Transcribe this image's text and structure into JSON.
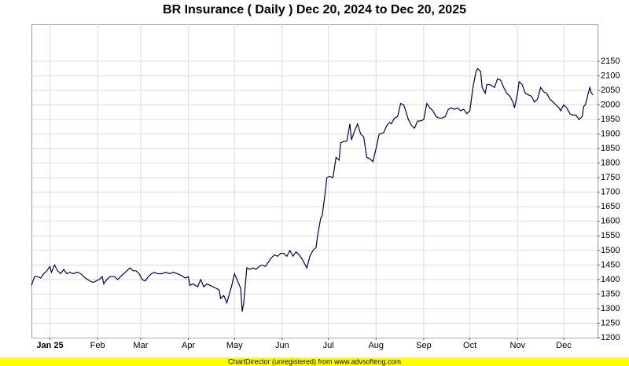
{
  "chart_data": {
    "type": "line",
    "title": "BR Insurance ( Daily ) Dec 20, 2024 to Dec 20, 2025",
    "footer": "ChartDirector (unregistered) from www.advsofteng.com",
    "x": [
      "2024-12-20",
      "2024-12-22",
      "2024-12-24",
      "2024-12-26",
      "2024-12-28",
      "2024-12-30",
      "2025-01-01",
      "2025-01-02",
      "2025-01-04",
      "2025-01-06",
      "2025-01-08",
      "2025-01-10",
      "2025-01-12",
      "2025-01-14",
      "2025-01-16",
      "2025-01-19",
      "2025-01-21",
      "2025-01-24",
      "2025-01-27",
      "2025-01-29",
      "2025-02-02",
      "2025-02-04",
      "2025-02-05",
      "2025-02-07",
      "2025-02-09",
      "2025-02-12",
      "2025-02-14",
      "2025-02-17",
      "2025-02-20",
      "2025-02-22",
      "2025-02-24",
      "2025-02-26",
      "2025-02-28",
      "2025-03-02",
      "2025-03-04",
      "2025-03-06",
      "2025-03-08",
      "2025-03-10",
      "2025-03-12",
      "2025-03-15",
      "2025-03-17",
      "2025-03-20",
      "2025-03-22",
      "2025-03-25",
      "2025-03-27",
      "2025-03-30",
      "2025-04-01",
      "2025-04-02",
      "2025-04-04",
      "2025-04-07",
      "2025-04-09",
      "2025-04-11",
      "2025-04-13",
      "2025-04-15",
      "2025-04-17",
      "2025-04-19",
      "2025-04-21",
      "2025-04-22",
      "2025-04-24",
      "2025-04-26",
      "2025-04-29",
      "2025-05-01",
      "2025-05-03",
      "2025-05-05",
      "2025-05-06",
      "2025-05-07",
      "2025-05-09",
      "2025-05-11",
      "2025-05-13",
      "2025-05-15",
      "2025-05-17",
      "2025-05-19",
      "2025-05-21",
      "2025-05-23",
      "2025-05-25",
      "2025-05-27",
      "2025-05-29",
      "2025-05-31",
      "2025-06-02",
      "2025-06-04",
      "2025-06-06",
      "2025-06-08",
      "2025-06-10",
      "2025-06-12",
      "2025-06-14",
      "2025-06-17",
      "2025-06-19",
      "2025-06-21",
      "2025-06-23",
      "2025-06-24",
      "2025-06-26",
      "2025-06-27",
      "2025-06-29",
      "2025-06-30",
      "2025-07-02",
      "2025-07-04",
      "2025-07-06",
      "2025-07-08",
      "2025-07-09",
      "2025-07-11",
      "2025-07-13",
      "2025-07-15",
      "2025-07-16",
      "2025-07-18",
      "2025-07-20",
      "2025-07-22",
      "2025-07-24",
      "2025-07-26",
      "2025-07-28",
      "2025-07-30",
      "2025-08-01",
      "2025-08-03",
      "2025-08-06",
      "2025-08-08",
      "2025-08-10",
      "2025-08-11",
      "2025-08-13",
      "2025-08-15",
      "2025-08-17",
      "2025-08-19",
      "2025-08-20",
      "2025-08-22",
      "2025-08-24",
      "2025-08-26",
      "2025-08-28",
      "2025-08-30",
      "2025-09-01",
      "2025-09-03",
      "2025-09-05",
      "2025-09-07",
      "2025-09-09",
      "2025-09-11",
      "2025-09-13",
      "2025-09-15",
      "2025-09-17",
      "2025-09-19",
      "2025-09-21",
      "2025-09-23",
      "2025-09-25",
      "2025-09-27",
      "2025-09-29",
      "2025-10-01",
      "2025-10-03",
      "2025-10-05",
      "2025-10-06",
      "2025-10-08",
      "2025-10-09",
      "2025-10-11",
      "2025-10-12",
      "2025-10-14",
      "2025-10-17",
      "2025-10-19",
      "2025-10-21",
      "2025-10-23",
      "2025-10-25",
      "2025-10-27",
      "2025-10-29",
      "2025-10-30",
      "2025-11-01",
      "2025-11-02",
      "2025-11-04",
      "2025-11-06",
      "2025-11-08",
      "2025-11-10",
      "2025-11-12",
      "2025-11-14",
      "2025-11-16",
      "2025-11-18",
      "2025-11-20",
      "2025-11-22",
      "2025-11-24",
      "2025-11-26",
      "2025-11-28",
      "2025-11-29",
      "2025-12-01",
      "2025-12-03",
      "2025-12-05",
      "2025-12-07",
      "2025-12-09",
      "2025-12-11",
      "2025-12-13",
      "2025-12-14",
      "2025-12-15",
      "2025-12-17",
      "2025-12-18",
      "2025-12-19",
      "2025-12-20"
    ],
    "series": [
      {
        "name": "BR Insurance",
        "color": "#000050",
        "values": [
          1380,
          1410,
          1410,
          1405,
          1420,
          1430,
          1445,
          1425,
          1450,
          1430,
          1420,
          1435,
          1420,
          1425,
          1420,
          1425,
          1420,
          1405,
          1395,
          1390,
          1400,
          1410,
          1385,
          1400,
          1410,
          1410,
          1400,
          1415,
          1430,
          1440,
          1430,
          1430,
          1420,
          1400,
          1395,
          1410,
          1420,
          1425,
          1420,
          1420,
          1425,
          1420,
          1425,
          1420,
          1415,
          1405,
          1410,
          1380,
          1385,
          1375,
          1400,
          1375,
          1385,
          1380,
          1375,
          1370,
          1365,
          1335,
          1345,
          1320,
          1375,
          1420,
          1395,
          1370,
          1290,
          1320,
          1440,
          1435,
          1440,
          1435,
          1445,
          1450,
          1445,
          1460,
          1475,
          1485,
          1480,
          1490,
          1490,
          1480,
          1500,
          1480,
          1495,
          1485,
          1470,
          1440,
          1480,
          1500,
          1510,
          1550,
          1610,
          1620,
          1700,
          1750,
          1755,
          1750,
          1820,
          1810,
          1870,
          1875,
          1875,
          1935,
          1880,
          1910,
          1935,
          1900,
          1890,
          1820,
          1815,
          1805,
          1850,
          1900,
          1905,
          1930,
          1940,
          1935,
          1955,
          1960,
          2005,
          2000,
          1985,
          1950,
          1930,
          1920,
          1945,
          1945,
          1950,
          2005,
          1990,
          1980,
          1960,
          1955,
          1955,
          1960,
          1985,
          1990,
          1985,
          1990,
          1980,
          1985,
          1970,
          1980,
          2060,
          2115,
          2125,
          2115,
          2060,
          2040,
          2070,
          2070,
          2060,
          2090,
          2085,
          2060,
          2040,
          2030,
          2010,
          1990,
          2040,
          2080,
          2070,
          2040,
          2035,
          2030,
          2010,
          2020,
          2060,
          2045,
          2040,
          2020,
          2010,
          2000,
          1990,
          1980,
          2000,
          1990,
          1970,
          1965,
          1965,
          1950,
          1960,
          1995,
          2000,
          2040,
          2060,
          2040,
          2035
        ]
      }
    ],
    "xlim": [
      "2024-12-20",
      "2025-12-23"
    ],
    "xticks": [
      {
        "value": "2025-01-01",
        "label": "Jan 25"
      },
      {
        "value": "2025-02-01",
        "label": "Feb"
      },
      {
        "value": "2025-03-01",
        "label": "Mar"
      },
      {
        "value": "2025-04-01",
        "label": "Apr"
      },
      {
        "value": "2025-05-01",
        "label": "May"
      },
      {
        "value": "2025-06-01",
        "label": "Jun"
      },
      {
        "value": "2025-07-01",
        "label": "Jul"
      },
      {
        "value": "2025-08-01",
        "label": "Aug"
      },
      {
        "value": "2025-09-01",
        "label": "Sep"
      },
      {
        "value": "2025-10-01",
        "label": "Oct"
      },
      {
        "value": "2025-11-01",
        "label": "Nov"
      },
      {
        "value": "2025-12-01",
        "label": "Dec"
      }
    ],
    "ylim": [
      1200,
      2277
    ],
    "yticks": [
      1200,
      1250,
      1300,
      1350,
      1400,
      1450,
      1500,
      1550,
      1600,
      1650,
      1700,
      1750,
      1800,
      1850,
      1900,
      1950,
      2000,
      2050,
      2100,
      2150
    ],
    "grid": true
  }
}
